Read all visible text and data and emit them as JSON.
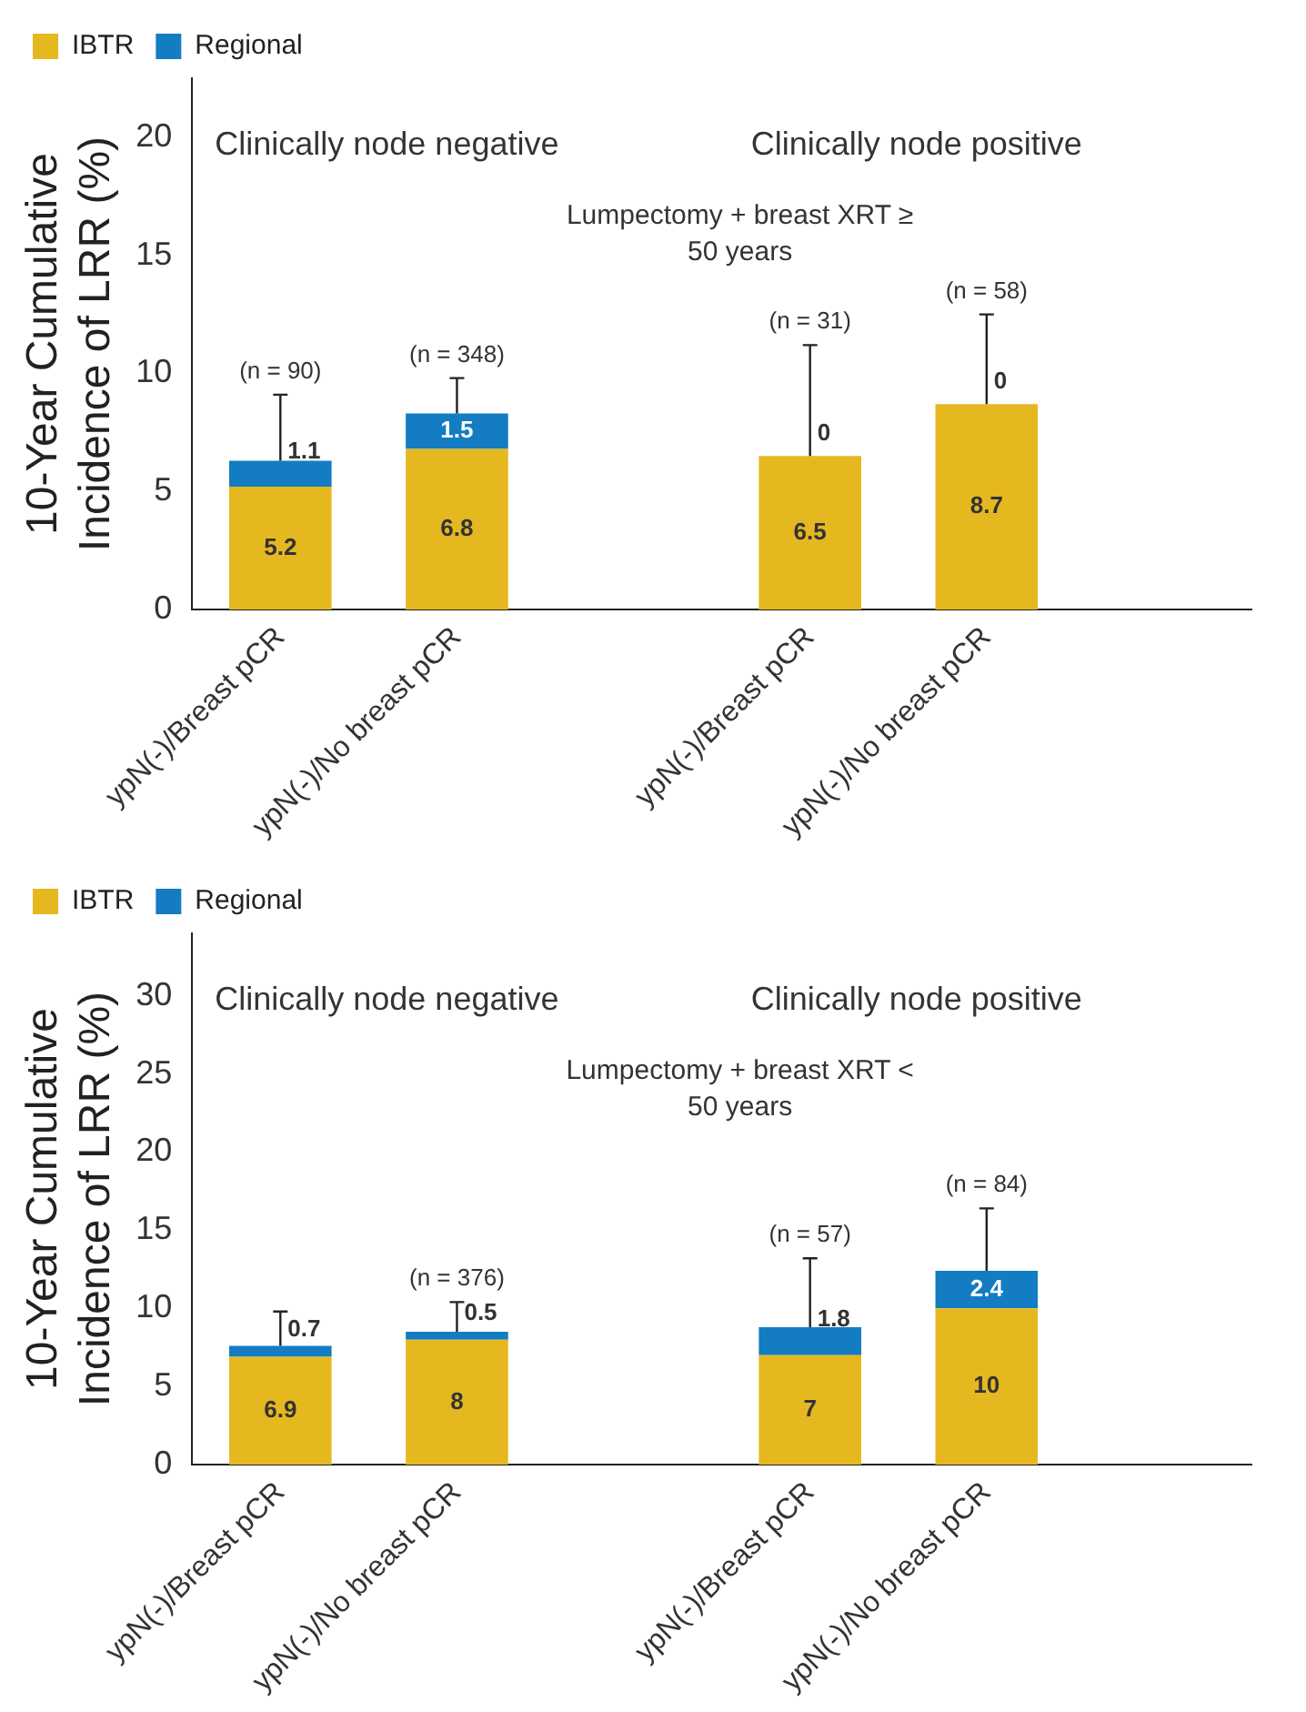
{
  "chart_data": [
    {
      "type": "bar",
      "stacked": true,
      "ylabel": "10-Year Cumulative Incidence of LRR (%)",
      "categories": [
        "ypN(-)/Breast pCR",
        "ypN(-)/No breast pCR",
        null,
        "ypN(-)/Breast pCR",
        "ypN(-)/No breast pCR",
        null
      ],
      "series": [
        {
          "name": "IBTR",
          "color": "#e6b820",
          "values": [
            5.2,
            6.8,
            null,
            6.5,
            8.7,
            null
          ]
        },
        {
          "name": "Regional",
          "color": "#137cc2",
          "values": [
            1.1,
            1.5,
            null,
            0,
            0,
            null
          ],
          "errors": [
            [
              6.3,
              9.1
            ],
            [
              8.3,
              9.8
            ],
            null,
            [
              6.5,
              11.2
            ],
            [
              8.7,
              12.5
            ],
            null
          ]
        }
      ],
      "ylim": [
        0,
        22.5
      ],
      "yticks": [
        0,
        5,
        10,
        15,
        20
      ],
      "grid": false,
      "legend": "top left",
      "data_labels": true,
      "annotations": [
        "Clinically node negative",
        "Clinically node positive",
        "Lumpectomy + breast XRT ≥ 50 years",
        "(n = 90)",
        "(n = 348)",
        "(n = 31)",
        "(n = 58)"
      ]
    },
    {
      "type": "bar",
      "stacked": true,
      "ylabel": "10-Year Cumulative Incidence of LRR (%)",
      "categories": [
        "ypN(-)/Breast pCR",
        "ypN(-)/No breast pCR",
        null,
        "ypN(-)/Breast pCR",
        "ypN(-)/No breast pCR",
        null
      ],
      "series": [
        {
          "name": "IBTR",
          "color": "#e6b820",
          "values": [
            6.9,
            8,
            null,
            7,
            10,
            null
          ]
        },
        {
          "name": "Regional",
          "color": "#137cc2",
          "values": [
            0.7,
            0.5,
            null,
            1.8,
            2.4,
            null
          ],
          "errors": [
            [
              7.6,
              9.8
            ],
            [
              8.5,
              10.4
            ],
            null,
            [
              8.8,
              13.2
            ],
            [
              12.4,
              16.4
            ],
            null
          ]
        }
      ],
      "ylim": [
        0,
        34
      ],
      "yticks": [
        0,
        5,
        10,
        15,
        20,
        25,
        30
      ],
      "grid": false,
      "legend": "top left",
      "data_labels": true,
      "annotations": [
        "Clinically node negative",
        "Clinically node positive",
        "Lumpectomy + breast XRT < 50 years",
        "(n = 376)",
        "(n = 57)",
        "(n = 84)"
      ]
    }
  ]
}
